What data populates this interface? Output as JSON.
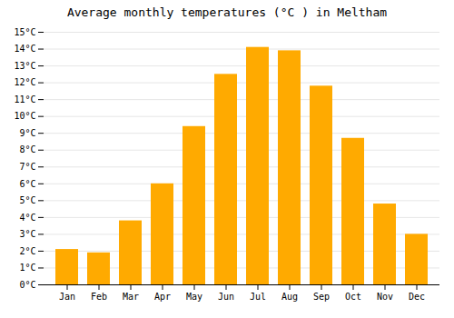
{
  "chart_data": {
    "type": "bar",
    "title": "Average monthly temperatures (°C ) in Meltham",
    "categories": [
      "Jan",
      "Feb",
      "Mar",
      "Apr",
      "May",
      "Jun",
      "Jul",
      "Aug",
      "Sep",
      "Oct",
      "Nov",
      "Dec"
    ],
    "values": [
      2.1,
      1.9,
      3.8,
      6.0,
      9.4,
      12.5,
      14.1,
      13.9,
      11.8,
      8.7,
      4.8,
      3.0
    ],
    "color": "#FFAA00",
    "ylim": [
      0,
      15
    ],
    "yticks": [
      {
        "value": 0,
        "label": "0°C"
      },
      {
        "value": 1,
        "label": "1°C"
      },
      {
        "value": 2,
        "label": "2°C"
      },
      {
        "value": 3,
        "label": "3°C"
      },
      {
        "value": 4,
        "label": "4°C"
      },
      {
        "value": 5,
        "label": "5°C"
      },
      {
        "value": 6,
        "label": "6°C"
      },
      {
        "value": 7,
        "label": "7°C"
      },
      {
        "value": 8,
        "label": "8°C"
      },
      {
        "value": 9,
        "label": "9°C"
      },
      {
        "value": 10,
        "label": "10°C"
      },
      {
        "value": 11,
        "label": "11°C"
      },
      {
        "value": 12,
        "label": "12°C"
      },
      {
        "value": 13,
        "label": "13°C"
      },
      {
        "value": 14,
        "label": "14°C"
      },
      {
        "value": 15,
        "label": "15°C"
      }
    ],
    "grid": true
  }
}
